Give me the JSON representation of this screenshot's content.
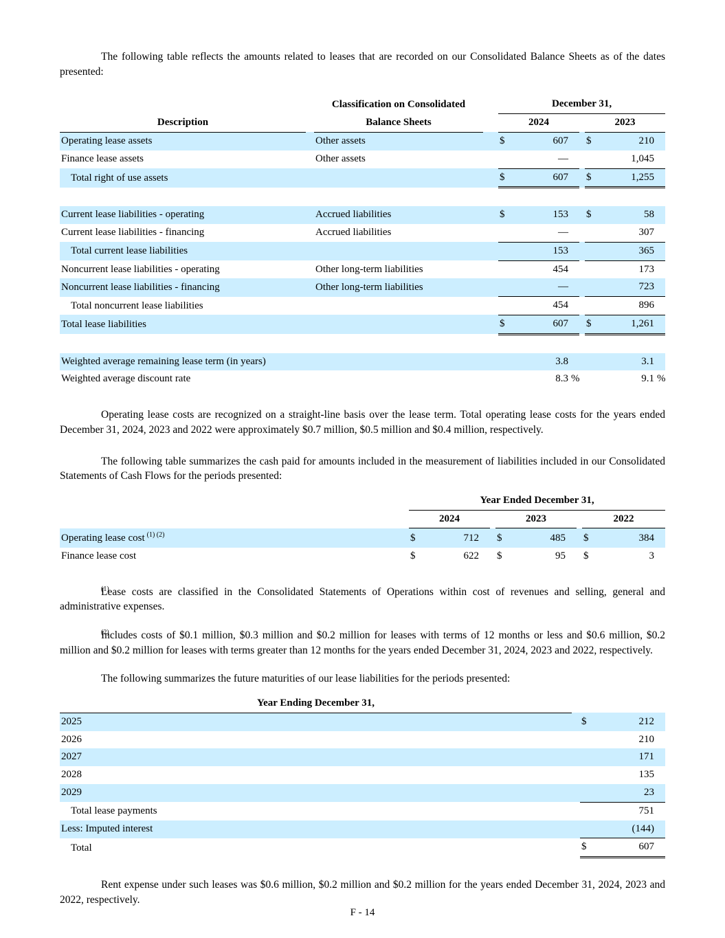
{
  "colors": {
    "row_shade": "#cceeff"
  },
  "page": {
    "footer": "F - 14"
  },
  "paragraphs": {
    "intro_balance": "The following table reflects the amounts related to leases that are recorded on our Consolidated Balance Sheets as of the dates presented:",
    "operating_costs": "Operating lease costs are recognized on a straight-line basis over the lease term. Total operating lease costs for the years ended December 31, 2024, 2023 and 2022 were approximately $0.7 million, $0.5 million and $0.4 million, respectively.",
    "intro_cash": "The following table summarizes the cash paid for amounts included in the measurement of liabilities included in our Consolidated Statements of Cash Flows for the periods presented:",
    "intro_maturities": "The following summarizes the future maturities of our lease liabilities for the periods presented:",
    "rent_expense": "Rent expense under such leases was $0.6 million, $0.2 million and $0.2 million for the years ended December 31, 2024, 2023 and 2022, respectively."
  },
  "balance_table": {
    "headers": {
      "description": "Description",
      "classification_line1": "Classification on Consolidated",
      "classification_line2": "Balance Sheets",
      "date_group": "December 31,",
      "years": [
        "2024",
        "2023"
      ]
    },
    "rows": [
      {
        "desc": "Operating lease assets",
        "cls": "Other assets",
        "shade": true,
        "cells": [
          {
            "cur": "$",
            "val": "607"
          },
          {
            "cur": "$",
            "val": "210"
          }
        ]
      },
      {
        "desc": "Finance lease assets",
        "cls": "Other assets",
        "shade": false,
        "cells": [
          {
            "val": "—"
          },
          {
            "val": "1,045"
          }
        ]
      },
      {
        "desc": "Total right of use assets",
        "shade": true,
        "indent": true,
        "line_top": true,
        "line_double": true,
        "cells": [
          {
            "cur": "$",
            "val": "607"
          },
          {
            "cur": "$",
            "val": "1,255"
          }
        ]
      },
      {
        "spacer": true
      },
      {
        "desc": "Current lease liabilities - operating",
        "cls": "Accrued liabilities",
        "shade": true,
        "cells": [
          {
            "cur": "$",
            "val": "153"
          },
          {
            "cur": "$",
            "val": "58"
          }
        ]
      },
      {
        "desc": "Current lease liabilities - financing",
        "cls": "Accrued liabilities",
        "shade": false,
        "cells": [
          {
            "val": "—"
          },
          {
            "val": "307"
          }
        ]
      },
      {
        "desc": "Total current lease liabilities",
        "shade": true,
        "indent": true,
        "line_top": true,
        "line_bottom": true,
        "cells": [
          {
            "val": "153"
          },
          {
            "val": "365"
          }
        ]
      },
      {
        "desc": "Noncurrent lease liabilities - operating",
        "cls": "Other long-term liabilities",
        "shade": false,
        "cells": [
          {
            "val": "454"
          },
          {
            "val": "173"
          }
        ]
      },
      {
        "desc": "Noncurrent lease liabilities - financing",
        "cls": "Other long-term liabilities",
        "shade": true,
        "cells": [
          {
            "val": "—"
          },
          {
            "val": "723"
          }
        ]
      },
      {
        "desc": "Total noncurrent lease liabilities",
        "shade": false,
        "indent": true,
        "line_top": true,
        "cells": [
          {
            "val": "454"
          },
          {
            "val": "896"
          }
        ]
      },
      {
        "desc": "Total lease liabilities",
        "shade": true,
        "line_top": true,
        "line_double": true,
        "cells": [
          {
            "cur": "$",
            "val": "607"
          },
          {
            "cur": "$",
            "val": "1,261"
          }
        ]
      },
      {
        "spacer": true
      },
      {
        "desc": "Weighted average remaining lease term (in years)",
        "shade": true,
        "cells": [
          {
            "val": "3.8"
          },
          {
            "val": "3.1"
          }
        ]
      },
      {
        "desc": "Weighted average discount rate",
        "shade": false,
        "cells": [
          {
            "val": "8.3",
            "suf": "%"
          },
          {
            "val": "9.1",
            "suf": "%"
          }
        ]
      }
    ]
  },
  "cash_table": {
    "headers": {
      "group": "Year Ended December 31,",
      "years": [
        "2024",
        "2023",
        "2022"
      ]
    },
    "rows": [
      {
        "desc": "Operating lease cost",
        "sup": "(1) (2)",
        "shade": true,
        "cells": [
          {
            "cur": "$",
            "val": "712"
          },
          {
            "cur": "$",
            "val": "485"
          },
          {
            "cur": "$",
            "val": "384"
          }
        ]
      },
      {
        "desc": "Finance lease cost",
        "shade": false,
        "cells": [
          {
            "cur": "$",
            "val": "622"
          },
          {
            "cur": "$",
            "val": "95"
          },
          {
            "cur": "$",
            "val": "3"
          }
        ]
      }
    ]
  },
  "footnotes": [
    {
      "marker": "(1)",
      "text": "Lease costs are classified in the Consolidated Statements of Operations within cost of revenues and selling, general and administrative expenses."
    },
    {
      "marker": "(2)",
      "text": "Includes costs of $0.1 million, $0.3 million and $0.2 million for leases with terms of 12 months or less and $0.6 million, $0.2 million and $0.2 million for leases with terms greater than 12 months for the years ended December 31, 2024, 2023 and 2022, respectively."
    }
  ],
  "maturities_table": {
    "header": "Year Ending December 31,",
    "rows": [
      {
        "label": "2025",
        "cur": "$",
        "val": "212",
        "shade": true
      },
      {
        "label": "2026",
        "val": "210",
        "shade": false
      },
      {
        "label": "2027",
        "val": "171",
        "shade": true
      },
      {
        "label": "2028",
        "val": "135",
        "shade": false
      },
      {
        "label": "2029",
        "val": "23",
        "shade": true
      },
      {
        "label": "Total lease payments",
        "val": "751",
        "shade": false,
        "indent": true,
        "line_top": true
      },
      {
        "label": "Less: Imputed interest",
        "val": "(144)",
        "shade": true
      },
      {
        "label": "Total",
        "cur": "$",
        "val": "607",
        "shade": false,
        "indent": true,
        "line_top": true,
        "line_double": true
      }
    ]
  }
}
